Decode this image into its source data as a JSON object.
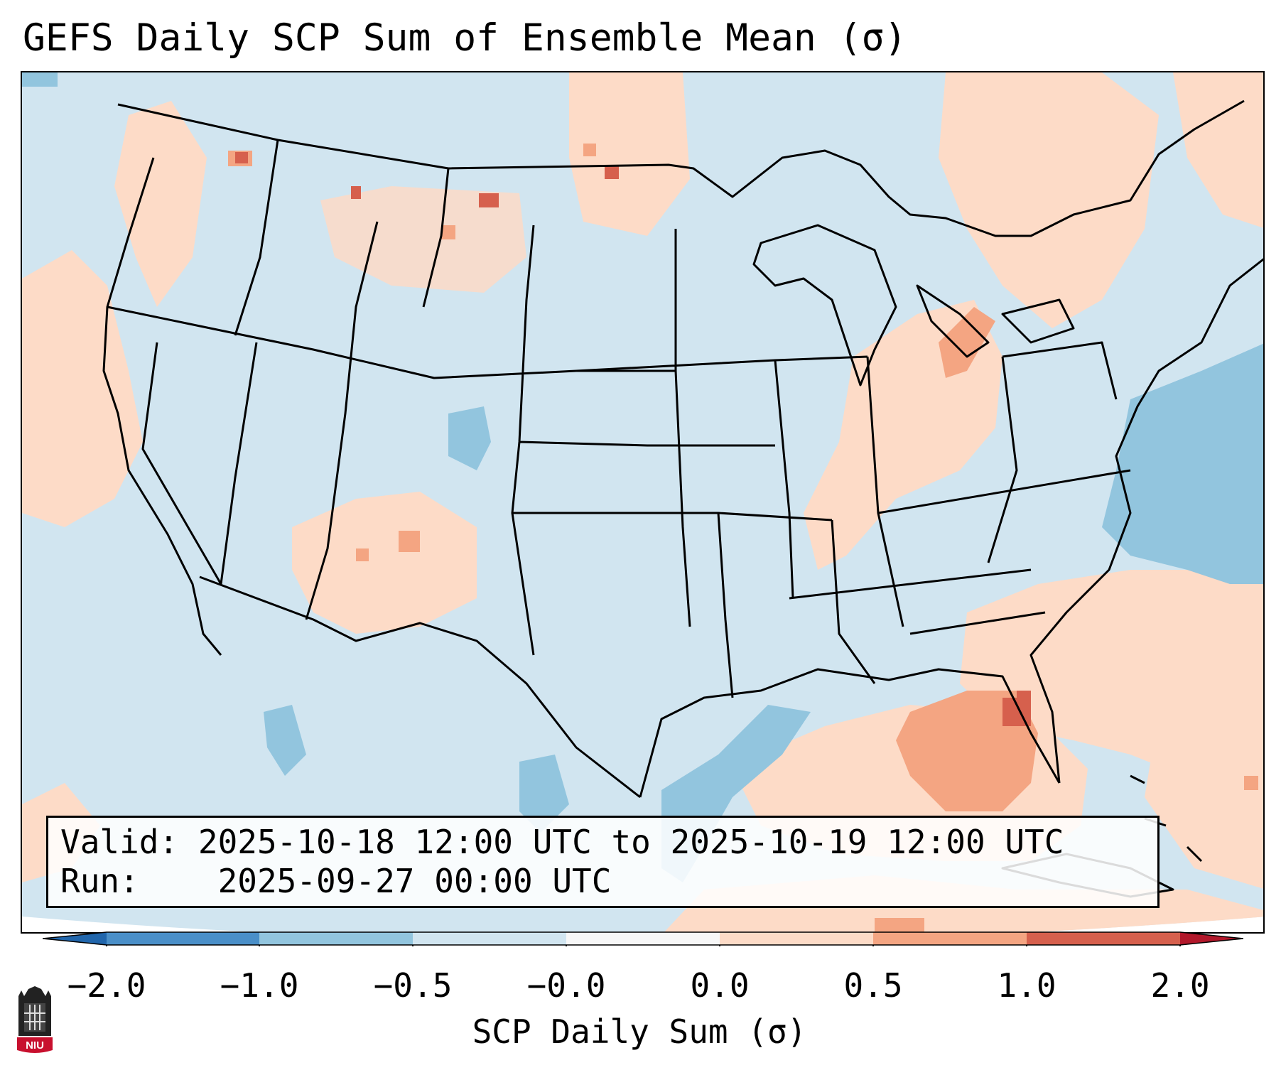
{
  "title": "GEFS Daily SCP Sum of Ensemble Mean (σ)",
  "info": {
    "valid_label": "Valid:",
    "valid_value": "2025-10-18 12:00 UTC to 2025-10-19 12:00 UTC",
    "run_label": "Run:",
    "run_value": "2025-09-27 00:00 UTC"
  },
  "colorbar": {
    "label": "SCP Daily Sum (σ)",
    "ticks": [
      "−2.0",
      "−1.0",
      "−0.5",
      "−0.0",
      "0.0",
      "0.5",
      "1.0",
      "2.0"
    ],
    "bins": [
      {
        "range": "-2.0 to -1.0",
        "color": "#4a8fc8"
      },
      {
        "range": "-1.0 to -0.5",
        "color": "#92c5de"
      },
      {
        "range": "-0.5 to -0.0",
        "color": "#d1e5f0"
      },
      {
        "range": "-0.0 to 0.0",
        "color": "#f7f7f7"
      },
      {
        "range": "0.0 to 0.5",
        "color": "#fddbc7"
      },
      {
        "range": "0.5 to 1.0",
        "color": "#f4a582"
      },
      {
        "range": "1.0 to 2.0",
        "color": "#d6604d"
      }
    ],
    "under_color": "#2166ac",
    "over_color": "#b2182b"
  },
  "logo": {
    "text": "NIU"
  },
  "colors": {
    "background_field": "#d1e5f0",
    "border_lines": "#000000"
  }
}
